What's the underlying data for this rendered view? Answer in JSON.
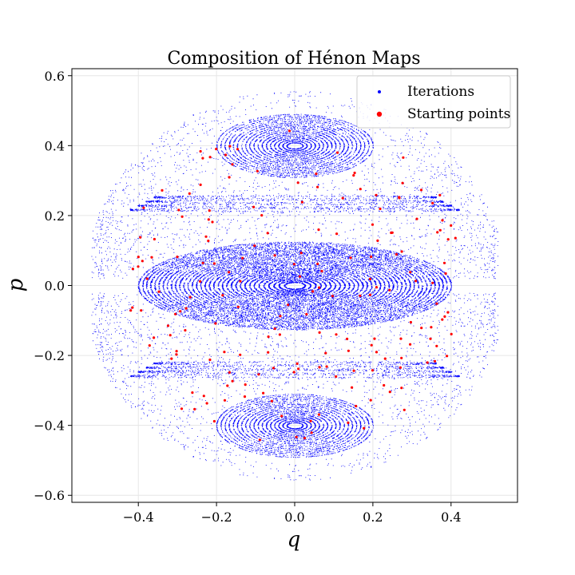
{
  "chart_data": {
    "type": "scatter",
    "title": "Composition of Hénon Maps",
    "xlabel": "q",
    "ylabel": "p",
    "xlim": [
      -0.57,
      0.57
    ],
    "ylim": [
      -0.62,
      0.62
    ],
    "xticks": [
      -0.4,
      -0.2,
      0.0,
      0.2,
      0.4
    ],
    "yticks": [
      -0.6,
      -0.4,
      -0.2,
      0.0,
      0.2,
      0.4,
      0.6
    ],
    "xtick_labels": [
      "−0.4",
      "−0.2",
      "0.0",
      "0.2",
      "0.4"
    ],
    "ytick_labels": [
      "−0.6",
      "−0.4",
      "−0.2",
      "0.0",
      "0.2",
      "0.4",
      "0.6"
    ],
    "grid": true,
    "legend_position": "top-right",
    "series": [
      {
        "name": "Iterations",
        "color": "#0000ff",
        "marker": "small-dot"
      },
      {
        "name": "Starting points",
        "color": "#ff0000",
        "marker": "dot"
      }
    ],
    "structure": {
      "islands": [
        {
          "center": [
            0.0,
            0.0
          ],
          "rx": [
            0.01,
            0.4
          ],
          "ry": [
            0.005,
            0.125
          ],
          "dense": true
        },
        {
          "center": [
            0.0,
            0.4
          ],
          "rx": [
            0.01,
            0.2
          ],
          "ry": [
            0.004,
            0.09
          ]
        },
        {
          "center": [
            0.0,
            -0.4
          ],
          "rx": [
            0.01,
            0.2
          ],
          "ry": [
            0.004,
            0.09
          ]
        }
      ],
      "outer_envelope": {
        "rx": 0.52,
        "ry": 0.56
      },
      "separatrix_hyperbolic_points": [
        [
          -0.41,
          0.0
        ],
        [
          0.41,
          0.0
        ]
      ]
    }
  }
}
